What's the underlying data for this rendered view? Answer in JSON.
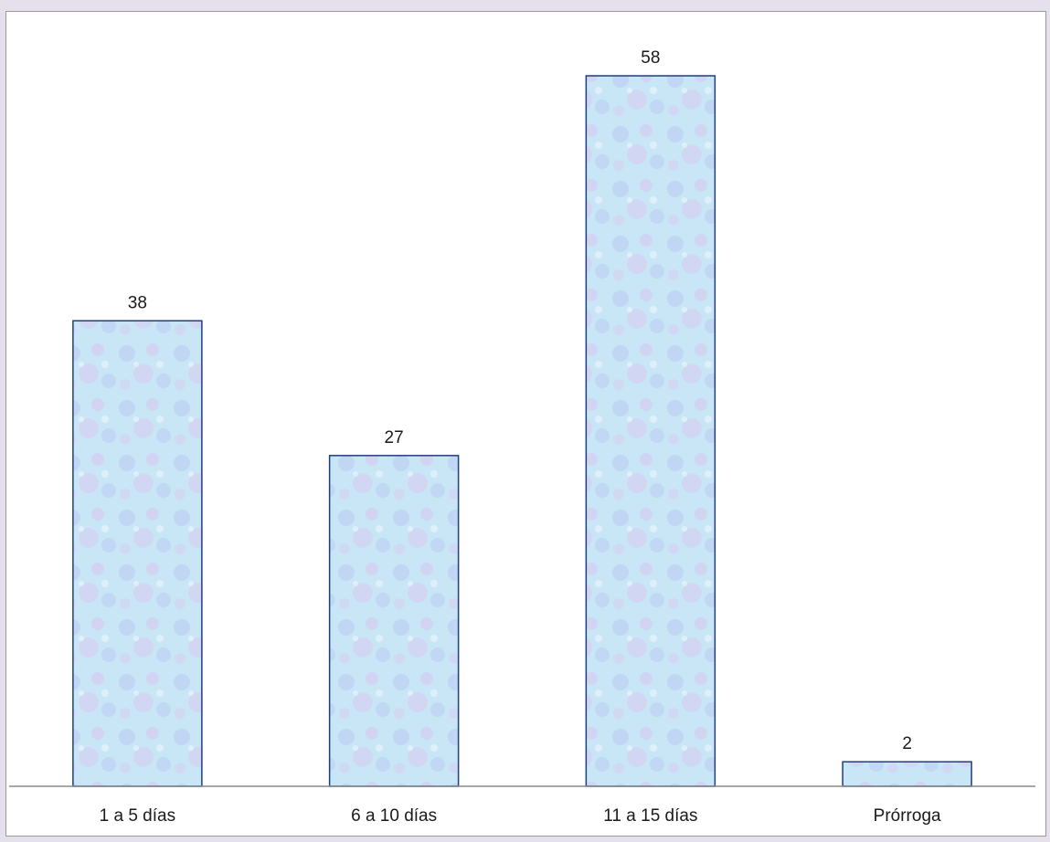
{
  "chart_data": {
    "type": "bar",
    "categories": [
      "1 a 5 días",
      "6 a 10 días",
      "11 a 15 días",
      "Prórroga"
    ],
    "values": [
      38,
      27,
      58,
      2
    ],
    "value_labels": [
      "38",
      "27",
      "58",
      "2"
    ],
    "title": "",
    "xlabel": "",
    "ylabel": "",
    "ylim": [
      0,
      58
    ],
    "grid": false,
    "legend": "none",
    "colors": {
      "bar_fill_light": "#c9e6f7",
      "bar_fill_mid": "#b9c8f0",
      "bar_fill_pink": "#dcc0ee",
      "bar_border": "#1f3f7a",
      "axis_line": "#8c8c8c",
      "page_background": "#e6e0ec"
    }
  }
}
